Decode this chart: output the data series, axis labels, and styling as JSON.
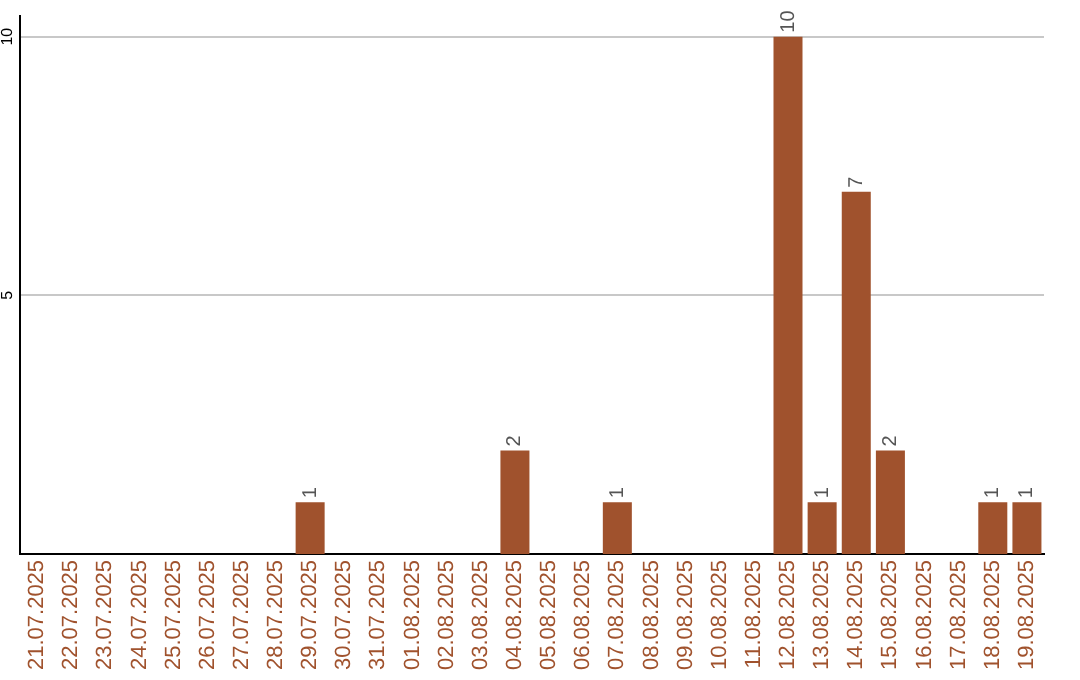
{
  "chart_data": {
    "type": "bar",
    "categories": [
      "21.07.2025",
      "22.07.2025",
      "23.07.2025",
      "24.07.2025",
      "25.07.2025",
      "26.07.2025",
      "27.07.2025",
      "28.07.2025",
      "29.07.2025",
      "30.07.2025",
      "31.07.2025",
      "01.08.2025",
      "02.08.2025",
      "03.08.2025",
      "04.08.2025",
      "05.08.2025",
      "06.08.2025",
      "07.08.2025",
      "08.08.2025",
      "09.08.2025",
      "10.08.2025",
      "11.08.2025",
      "12.08.2025",
      "13.08.2025",
      "14.08.2025",
      "15.08.2025",
      "16.08.2025",
      "17.08.2025",
      "18.08.2025",
      "19.08.2025"
    ],
    "values": [
      0,
      0,
      0,
      0,
      0,
      0,
      0,
      0,
      1,
      0,
      0,
      0,
      0,
      0,
      2,
      0,
      0,
      1,
      0,
      0,
      0,
      0,
      10,
      1,
      7,
      2,
      0,
      0,
      1,
      1
    ],
    "value_labels": [
      null,
      null,
      null,
      null,
      null,
      null,
      null,
      null,
      "1",
      null,
      null,
      null,
      null,
      null,
      "2",
      null,
      null,
      "1",
      null,
      null,
      null,
      null,
      "10",
      "1",
      "7",
      "2",
      null,
      null,
      "1",
      "1"
    ],
    "color": "#a0522d",
    "ylim": [
      0,
      10.4
    ],
    "yticks": [
      5,
      10
    ],
    "grid": "y",
    "legend": false
  }
}
